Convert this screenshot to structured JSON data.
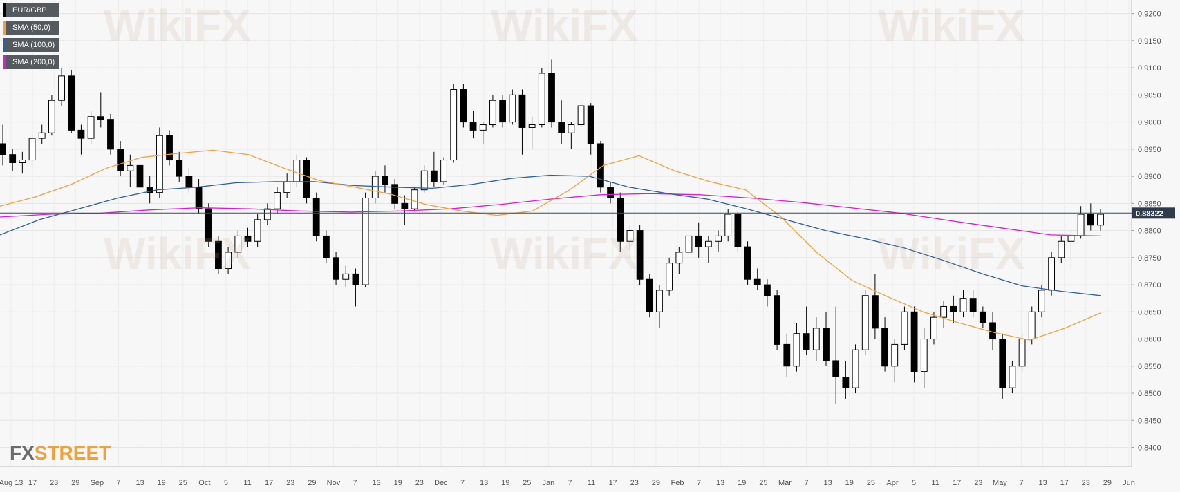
{
  "chart_data": {
    "type": "candlestick",
    "symbol": "EUR/GBP",
    "legend": [
      {
        "label": "EUR/GBP",
        "color": "#000000"
      },
      {
        "label": "SMA (50,0)",
        "color": "#f0a040"
      },
      {
        "label": "SMA (100,0)",
        "color": "#2f5f9f"
      },
      {
        "label": "SMA (200,0)",
        "color": "#d020d0"
      }
    ],
    "current_price": "0.88322",
    "y_ticks": [
      "0.9200",
      "0.9150",
      "0.9100",
      "0.9050",
      "0.9000",
      "0.8950",
      "0.8900",
      "0.8850",
      "0.8800",
      "0.8750",
      "0.8700",
      "0.8650",
      "0.8600",
      "0.8550",
      "0.8500",
      "0.8450",
      "0.8400"
    ],
    "ylim": [
      0.8365,
      0.9225
    ],
    "x_ticks": [
      "Aug 13",
      "17",
      "23",
      "29",
      "Sep",
      "7",
      "13",
      "19",
      "25",
      "Oct",
      "5",
      "11",
      "17",
      "23",
      "29",
      "Nov",
      "7",
      "13",
      "19",
      "23",
      "Dec",
      "7",
      "13",
      "19",
      "25",
      "Jan",
      "7",
      "11",
      "17",
      "23",
      "29",
      "Feb",
      "7",
      "13",
      "19",
      "25",
      "Mar",
      "7",
      "13",
      "19",
      "25",
      "Apr",
      "5",
      "11",
      "17",
      "23",
      "May",
      "7",
      "13",
      "17",
      "23",
      "29",
      "Jun"
    ],
    "sma_50": [
      0.8845,
      0.8862,
      0.8885,
      0.8915,
      0.8935,
      0.8942,
      0.8948,
      0.894,
      0.8915,
      0.8892,
      0.888,
      0.8867,
      0.8848,
      0.8836,
      0.8828,
      0.8836,
      0.8873,
      0.892,
      0.8938,
      0.891,
      0.889,
      0.8875,
      0.8825,
      0.876,
      0.8708,
      0.8678,
      0.865,
      0.863,
      0.8612,
      0.8598,
      0.862,
      0.8648
    ],
    "sma_100": [
      0.8792,
      0.882,
      0.884,
      0.886,
      0.8875,
      0.888,
      0.8888,
      0.889,
      0.889,
      0.8883,
      0.888,
      0.8878,
      0.8885,
      0.8896,
      0.8902,
      0.89,
      0.888,
      0.8868,
      0.8858,
      0.884,
      0.882,
      0.88,
      0.8785,
      0.8768,
      0.8745,
      0.872,
      0.8698,
      0.8688,
      0.868
    ],
    "sma_200": [
      0.8825,
      0.883,
      0.8832,
      0.8838,
      0.8842,
      0.884,
      0.8836,
      0.8834,
      0.8836,
      0.884,
      0.8848,
      0.8858,
      0.8866,
      0.8868,
      0.8866,
      0.886,
      0.8852,
      0.8842,
      0.8832,
      0.8818,
      0.8805,
      0.8792,
      0.879
    ],
    "candles": [
      [
        0.896,
        0.8995,
        0.892,
        0.894
      ],
      [
        0.894,
        0.895,
        0.891,
        0.8925
      ],
      [
        0.8925,
        0.8945,
        0.8905,
        0.893
      ],
      [
        0.893,
        0.8975,
        0.892,
        0.897
      ],
      [
        0.897,
        0.8995,
        0.896,
        0.898
      ],
      [
        0.898,
        0.905,
        0.8975,
        0.904
      ],
      [
        0.904,
        0.91,
        0.903,
        0.9085
      ],
      [
        0.9085,
        0.9095,
        0.898,
        0.8985
      ],
      [
        0.8985,
        0.8995,
        0.894,
        0.897
      ],
      [
        0.897,
        0.902,
        0.896,
        0.901
      ],
      [
        0.901,
        0.9055,
        0.899,
        0.9005
      ],
      [
        0.9005,
        0.9015,
        0.894,
        0.895
      ],
      [
        0.895,
        0.8965,
        0.89,
        0.891
      ],
      [
        0.891,
        0.894,
        0.888,
        0.892
      ],
      [
        0.892,
        0.8935,
        0.887,
        0.888
      ],
      [
        0.888,
        0.89,
        0.885,
        0.887
      ],
      [
        0.887,
        0.899,
        0.886,
        0.8975
      ],
      [
        0.8975,
        0.8985,
        0.892,
        0.893
      ],
      [
        0.893,
        0.8945,
        0.889,
        0.89
      ],
      [
        0.89,
        0.8915,
        0.887,
        0.888
      ],
      [
        0.888,
        0.8895,
        0.883,
        0.884
      ],
      [
        0.884,
        0.885,
        0.877,
        0.878
      ],
      [
        0.878,
        0.879,
        0.872,
        0.873
      ],
      [
        0.873,
        0.877,
        0.872,
        0.876
      ],
      [
        0.876,
        0.88,
        0.875,
        0.879
      ],
      [
        0.879,
        0.8805,
        0.877,
        0.878
      ],
      [
        0.878,
        0.883,
        0.877,
        0.882
      ],
      [
        0.882,
        0.885,
        0.881,
        0.884
      ],
      [
        0.884,
        0.888,
        0.883,
        0.887
      ],
      [
        0.887,
        0.8905,
        0.886,
        0.889
      ],
      [
        0.889,
        0.894,
        0.888,
        0.893
      ],
      [
        0.893,
        0.8935,
        0.885,
        0.886
      ],
      [
        0.886,
        0.887,
        0.878,
        0.879
      ],
      [
        0.879,
        0.88,
        0.874,
        0.875
      ],
      [
        0.875,
        0.876,
        0.87,
        0.871
      ],
      [
        0.871,
        0.8735,
        0.8695,
        0.872
      ],
      [
        0.872,
        0.873,
        0.866,
        0.87
      ],
      [
        0.87,
        0.887,
        0.8695,
        0.886
      ],
      [
        0.886,
        0.891,
        0.885,
        0.89
      ],
      [
        0.89,
        0.892,
        0.887,
        0.8885
      ],
      [
        0.8885,
        0.8895,
        0.884,
        0.885
      ],
      [
        0.885,
        0.8865,
        0.881,
        0.884
      ],
      [
        0.884,
        0.888,
        0.8835,
        0.8875
      ],
      [
        0.8875,
        0.892,
        0.887,
        0.891
      ],
      [
        0.891,
        0.8945,
        0.888,
        0.889
      ],
      [
        0.889,
        0.8935,
        0.8885,
        0.893
      ],
      [
        0.893,
        0.907,
        0.8925,
        0.906
      ],
      [
        0.906,
        0.907,
        0.899,
        0.9
      ],
      [
        0.9,
        0.902,
        0.897,
        0.8985
      ],
      [
        0.8985,
        0.9,
        0.896,
        0.8995
      ],
      [
        0.8995,
        0.905,
        0.899,
        0.904
      ],
      [
        0.904,
        0.905,
        0.899,
        0.9
      ],
      [
        0.9,
        0.906,
        0.8995,
        0.905
      ],
      [
        0.905,
        0.906,
        0.894,
        0.899
      ],
      [
        0.899,
        0.901,
        0.895,
        0.8995
      ],
      [
        0.8995,
        0.91,
        0.899,
        0.909
      ],
      [
        0.909,
        0.9115,
        0.899,
        0.9
      ],
      [
        0.9,
        0.904,
        0.896,
        0.898
      ],
      [
        0.898,
        0.9,
        0.895,
        0.8995
      ],
      [
        0.8995,
        0.904,
        0.899,
        0.903
      ],
      [
        0.903,
        0.9035,
        0.894,
        0.896
      ],
      [
        0.896,
        0.8965,
        0.887,
        0.888
      ],
      [
        0.888,
        0.889,
        0.885,
        0.886
      ],
      [
        0.886,
        0.887,
        0.876,
        0.878
      ],
      [
        0.878,
        0.881,
        0.875,
        0.88
      ],
      [
        0.88,
        0.881,
        0.87,
        0.871
      ],
      [
        0.871,
        0.872,
        0.864,
        0.865
      ],
      [
        0.865,
        0.87,
        0.862,
        0.869
      ],
      [
        0.869,
        0.875,
        0.868,
        0.874
      ],
      [
        0.874,
        0.877,
        0.872,
        0.876
      ],
      [
        0.876,
        0.88,
        0.874,
        0.879
      ],
      [
        0.879,
        0.8815,
        0.875,
        0.877
      ],
      [
        0.877,
        0.879,
        0.874,
        0.878
      ],
      [
        0.878,
        0.88,
        0.876,
        0.879
      ],
      [
        0.879,
        0.884,
        0.878,
        0.883
      ],
      [
        0.883,
        0.8835,
        0.876,
        0.877
      ],
      [
        0.877,
        0.878,
        0.87,
        0.871
      ],
      [
        0.871,
        0.873,
        0.869,
        0.87
      ],
      [
        0.87,
        0.871,
        0.866,
        0.868
      ],
      [
        0.868,
        0.869,
        0.858,
        0.859
      ],
      [
        0.859,
        0.861,
        0.853,
        0.855
      ],
      [
        0.855,
        0.863,
        0.854,
        0.861
      ],
      [
        0.861,
        0.866,
        0.857,
        0.858
      ],
      [
        0.858,
        0.864,
        0.856,
        0.862
      ],
      [
        0.862,
        0.865,
        0.855,
        0.856
      ],
      [
        0.856,
        0.866,
        0.848,
        0.853
      ],
      [
        0.853,
        0.856,
        0.849,
        0.851
      ],
      [
        0.851,
        0.859,
        0.85,
        0.858
      ],
      [
        0.858,
        0.869,
        0.857,
        0.868
      ],
      [
        0.868,
        0.872,
        0.86,
        0.862
      ],
      [
        0.862,
        0.864,
        0.854,
        0.855
      ],
      [
        0.855,
        0.86,
        0.852,
        0.859
      ],
      [
        0.859,
        0.866,
        0.858,
        0.865
      ],
      [
        0.865,
        0.866,
        0.852,
        0.854
      ],
      [
        0.854,
        0.862,
        0.851,
        0.86
      ],
      [
        0.86,
        0.865,
        0.859,
        0.864
      ],
      [
        0.864,
        0.867,
        0.862,
        0.866
      ],
      [
        0.866,
        0.868,
        0.863,
        0.865
      ],
      [
        0.865,
        0.869,
        0.864,
        0.8675
      ],
      [
        0.8675,
        0.869,
        0.864,
        0.865
      ],
      [
        0.865,
        0.866,
        0.862,
        0.863
      ],
      [
        0.863,
        0.865,
        0.858,
        0.86
      ],
      [
        0.86,
        0.861,
        0.849,
        0.851
      ],
      [
        0.851,
        0.856,
        0.85,
        0.855
      ],
      [
        0.855,
        0.861,
        0.854,
        0.86
      ],
      [
        0.86,
        0.866,
        0.859,
        0.865
      ],
      [
        0.865,
        0.87,
        0.864,
        0.869
      ],
      [
        0.869,
        0.876,
        0.868,
        0.875
      ],
      [
        0.875,
        0.879,
        0.874,
        0.878
      ],
      [
        0.878,
        0.88,
        0.873,
        0.879
      ],
      [
        0.879,
        0.8845,
        0.8785,
        0.883
      ],
      [
        0.883,
        0.885,
        0.88,
        0.881
      ],
      [
        0.881,
        0.884,
        0.88,
        0.883
      ]
    ]
  },
  "watermark_text": "WikiFX",
  "brand": {
    "fx": "FX",
    "street": "STREET"
  }
}
